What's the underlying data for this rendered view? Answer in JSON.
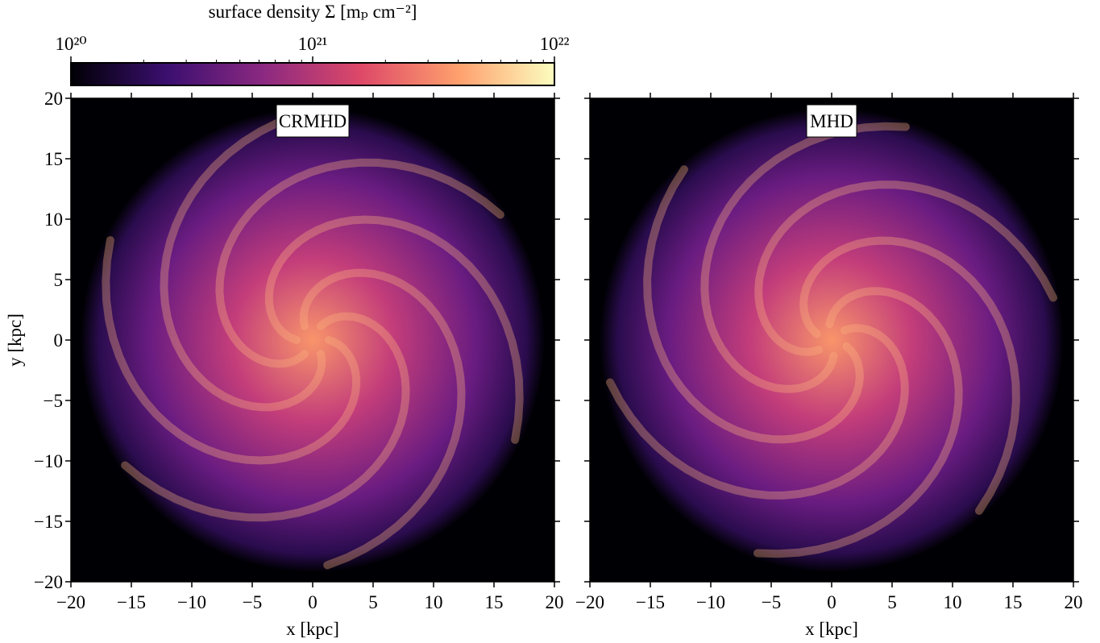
{
  "colorbar": {
    "label": "surface density Σ [mₚ cm⁻²]",
    "scale": "log",
    "lim": [
      1e+20,
      1e+22
    ],
    "ticks": [
      {
        "value": 1e+20,
        "label": "10²⁰"
      },
      {
        "value": 1e+21,
        "label": "10²¹"
      },
      {
        "value": 1e+22,
        "label": "10²²"
      }
    ],
    "minor_ticks": [
      2e+20,
      3e+20,
      4e+20,
      5e+20,
      6e+20,
      7e+20,
      8e+20,
      9e+20,
      2e+21,
      3e+21,
      4e+21,
      5e+21,
      6e+21,
      7e+21,
      8e+21,
      9e+21
    ],
    "colors": [
      "#000004",
      "#3b0f70",
      "#8c2981",
      "#de4968",
      "#fe9f6d",
      "#fcfdbf"
    ]
  },
  "chart_data": [
    {
      "type": "image",
      "title": "CRMHD",
      "xlabel": "x [kpc]",
      "ylabel": "y [kpc]",
      "xlim": [
        -20,
        20
      ],
      "ylim": [
        -20,
        20
      ],
      "xticks": [
        {
          "value": -20,
          "label": "−20"
        },
        {
          "value": -15,
          "label": "−15"
        },
        {
          "value": -10,
          "label": "−10"
        },
        {
          "value": -5,
          "label": "−5"
        },
        0,
        5,
        10,
        15,
        20
      ],
      "yticks": [
        {
          "value": -20,
          "label": "−20"
        },
        {
          "value": -15,
          "label": "−15"
        },
        {
          "value": -10,
          "label": "−10"
        },
        {
          "value": -5,
          "label": "−5"
        },
        0,
        5,
        10,
        15,
        20
      ],
      "ytick_labels": true
    },
    {
      "type": "image",
      "title": "MHD",
      "xlabel": "x [kpc]",
      "xlim": [
        -20,
        20
      ],
      "ylim": [
        -20,
        20
      ],
      "xticks": [
        {
          "value": -20,
          "label": "−20"
        },
        {
          "value": -15,
          "label": "−15"
        },
        {
          "value": -10,
          "label": "−10"
        },
        {
          "value": -5,
          "label": "−5"
        },
        0,
        5,
        10,
        15,
        20
      ],
      "yticks": [
        -20,
        -15,
        -10,
        -5,
        0,
        5,
        10,
        15,
        20
      ],
      "ytick_labels": false
    }
  ]
}
